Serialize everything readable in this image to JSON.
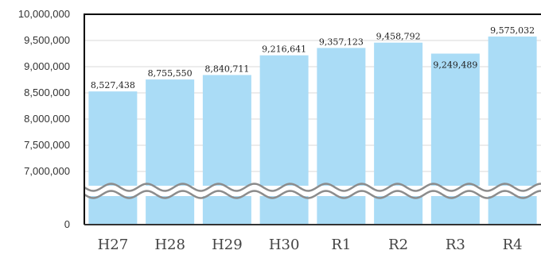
{
  "chart_data": {
    "type": "bar",
    "categories": [
      "H27",
      "H28",
      "H29",
      "H30",
      "R1",
      "R2",
      "R3",
      "R4"
    ],
    "values": [
      8527438,
      8755550,
      8840711,
      9216641,
      9357123,
      9458792,
      9249489,
      9575032
    ],
    "data_labels": [
      "8,527,438",
      "8,755,550",
      "8,840,711",
      "9,216,641",
      "9,357,123",
      "9,458,792",
      "9,249,489",
      "9,575,032"
    ],
    "y_tick_values": [
      0,
      7000000,
      7500000,
      8000000,
      8500000,
      9000000,
      9500000,
      10000000
    ],
    "y_tick_labels": [
      "0",
      "7,000,000",
      "7,500,000",
      "8,000,000",
      "8,500,000",
      "9,000,000",
      "9,500,000",
      "10,000,000"
    ],
    "ylim": [
      0,
      10000000
    ],
    "axis_break": true,
    "grid": true,
    "colors": {
      "bar": "#aadcf6",
      "grid": "#d9d9d9",
      "axis": "#000000",
      "break_wave": "#8c8c8c"
    }
  }
}
